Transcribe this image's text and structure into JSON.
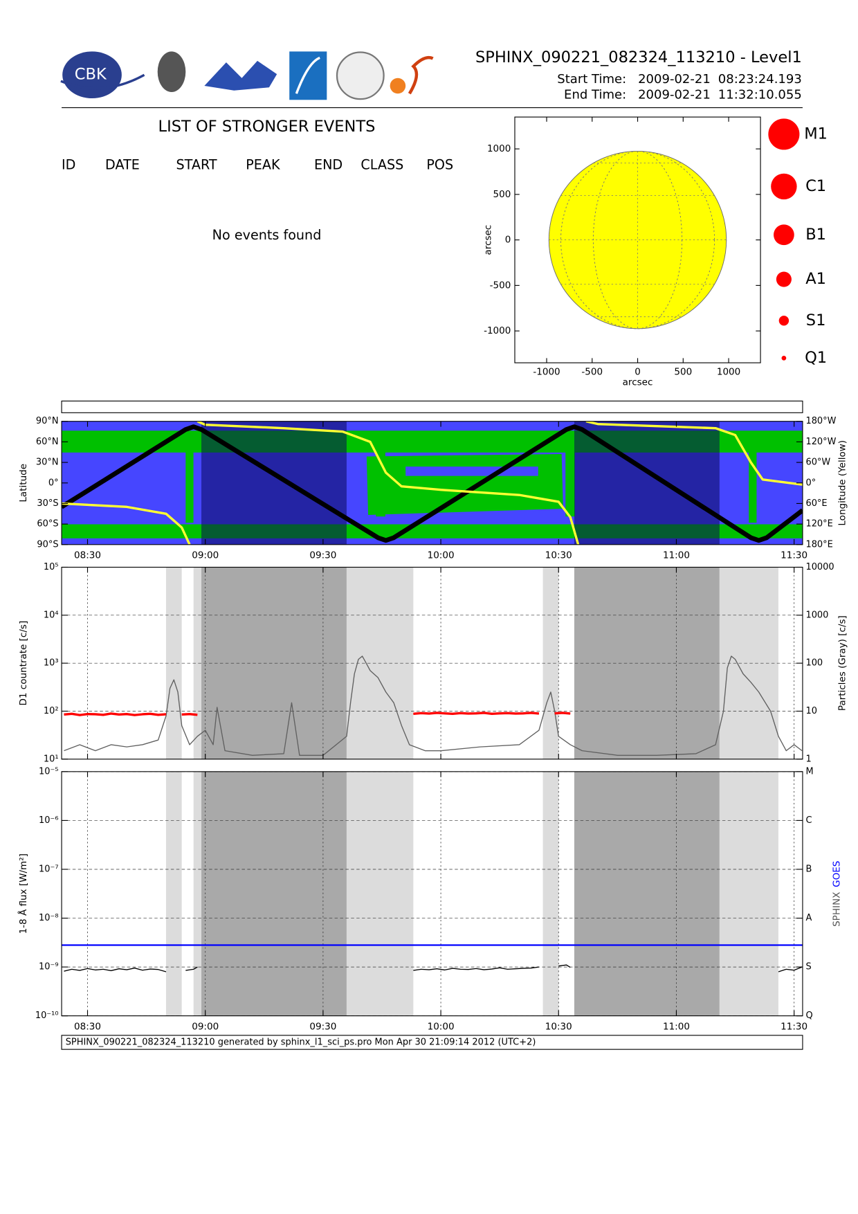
{
  "header": {
    "title": "SPHINX_090221_082324_113210 - Level1",
    "start_label": "Start Time:",
    "start_date": "2009-02-21",
    "start_time": "08:23:24.193",
    "end_label": "End Time:",
    "end_date": "2009-02-21",
    "end_time": "11:32:10.055"
  },
  "logos": {
    "cbk": "CBK"
  },
  "events": {
    "title": "LIST OF STRONGER EVENTS",
    "columns": [
      "ID",
      "DATE",
      "START",
      "PEAK",
      "END",
      "CLASS",
      "POS"
    ],
    "message": "No events found"
  },
  "shade_colors": {
    "light": "#dcdcdc",
    "dark": "#a9a9a9"
  },
  "shaded_intervals": [
    {
      "start": "08:50",
      "end": "08:54",
      "kind": "light"
    },
    {
      "start": "08:57",
      "end": "08:59",
      "kind": "light"
    },
    {
      "start": "08:59",
      "end": "09:36",
      "kind": "dark"
    },
    {
      "start": "09:36",
      "end": "09:53",
      "kind": "light"
    },
    {
      "start": "10:26",
      "end": "10:30",
      "kind": "light"
    },
    {
      "start": "10:34",
      "end": "11:11",
      "kind": "dark"
    },
    {
      "start": "11:11",
      "end": "11:26",
      "kind": "light"
    }
  ],
  "chart_data": [
    {
      "type": "disk",
      "xlabel": "arcsec",
      "ylabel": "arcsec",
      "xlim": [
        -1350,
        1350
      ],
      "ylim": [
        -1350,
        1350
      ],
      "xticks": [
        -1000,
        -500,
        0,
        500,
        1000
      ],
      "yticks": [
        -1000,
        -500,
        0,
        500,
        1000
      ],
      "disk_radius": 975,
      "disk_color": "#ffff00",
      "size_legend": {
        "labels": [
          "M1",
          "C1",
          "B1",
          "A1",
          "S1",
          "Q1"
        ],
        "color": "#ff0000"
      }
    },
    {
      "type": "line",
      "ylabel": "Latitude",
      "y2label": "Longitude (Yellow)",
      "xlim": [
        "08:23:24",
        "11:32:10"
      ],
      "xticks": [
        "08:30",
        "09:00",
        "09:30",
        "10:00",
        "10:30",
        "11:00",
        "11:30"
      ],
      "xtick_labels": true,
      "ylim": [
        -90,
        90
      ],
      "yticks": [
        {
          "value": 90,
          "label": "90°N"
        },
        {
          "value": 60,
          "label": "60°N"
        },
        {
          "value": 30,
          "label": "30°N"
        },
        {
          "value": 0,
          "label": "0°"
        },
        {
          "value": -30,
          "label": "30°S"
        },
        {
          "value": -60,
          "label": "60°S"
        },
        {
          "value": -90,
          "label": "90°S"
        }
      ],
      "y2lim": [
        -180,
        180
      ],
      "y2ticks": [
        {
          "value": 180,
          "label": "180°W"
        },
        {
          "value": 120,
          "label": "120°W"
        },
        {
          "value": 60,
          "label": "60°W"
        },
        {
          "value": 0,
          "label": "0°"
        },
        {
          "value": -60,
          "label": "60°E"
        },
        {
          "value": -120,
          "label": "120°E"
        },
        {
          "value": -180,
          "label": "180°E"
        }
      ],
      "map_background": true,
      "series": [
        {
          "color": "#000000",
          "width": 6,
          "x": [
            "08:23:24",
            "08:55",
            "08:57",
            "08:59",
            "09:44",
            "09:46",
            "09:48",
            "10:32",
            "10:34",
            "10:36",
            "11:19",
            "11:21",
            "11:23",
            "11:32:10"
          ],
          "values": [
            -35,
            78,
            82,
            78,
            -80,
            -84,
            -80,
            78,
            82,
            78,
            -80,
            -84,
            -80,
            -40
          ]
        },
        {
          "color": "#ffff33",
          "width": 3,
          "axis": "y2",
          "x": [
            "08:23:24",
            "08:40",
            "08:50",
            "08:54",
            "08:56",
            "08:57",
            "08:58",
            "09:00",
            "09:20",
            "09:35",
            "09:42",
            "09:46",
            "09:50",
            "10:00",
            "10:20",
            "10:30",
            "10:33",
            "10:35",
            "10:36",
            "10:37",
            "10:40",
            "11:10",
            "11:15",
            "11:19",
            "11:22",
            "11:32:10"
          ],
          "values": [
            -60,
            -70,
            -90,
            -130,
            -180,
            null,
            180,
            170,
            160,
            150,
            120,
            30,
            -10,
            -20,
            -35,
            -55,
            -100,
            -180,
            null,
            180,
            172,
            160,
            140,
            60,
            10,
            -5
          ]
        }
      ]
    },
    {
      "type": "line",
      "ylabel": "D1 countrate [c/s]",
      "y2label": "Particles (Gray) [c/s]",
      "xlim": [
        "08:23:24",
        "11:32:10"
      ],
      "xticks": [
        "08:30",
        "09:00",
        "09:30",
        "10:00",
        "10:30",
        "11:00",
        "11:30"
      ],
      "xtick_labels": false,
      "scale": "log",
      "grid": true,
      "ylim": [
        10,
        100000
      ],
      "yticks": [
        {
          "value": 10,
          "label": "10¹"
        },
        {
          "value": 100,
          "label": "10²"
        },
        {
          "value": 1000,
          "label": "10³"
        },
        {
          "value": 10000,
          "label": "10⁴"
        },
        {
          "value": 100000,
          "label": "10⁵"
        }
      ],
      "y2lim": [
        1,
        10000
      ],
      "y2ticks": [
        1,
        10,
        100,
        1000,
        10000
      ],
      "series": [
        {
          "color": "#606060",
          "width": 1.2,
          "axis": "y2",
          "x": [
            "08:24",
            "08:28",
            "08:32",
            "08:36",
            "08:40",
            "08:44",
            "08:48",
            "08:50",
            "08:51",
            "08:52",
            "08:53",
            "08:54",
            "08:56",
            "08:58",
            "09:00",
            "09:02",
            "09:03",
            "09:05",
            "09:12",
            "09:20",
            "09:22",
            "09:24",
            "09:30",
            "09:36",
            "09:37",
            "09:38",
            "09:39",
            "09:40",
            "09:41",
            "09:42",
            "09:44",
            "09:46",
            "09:48",
            "09:50",
            "09:52",
            "09:56",
            "10:00",
            "10:10",
            "10:20",
            "10:25",
            "10:27",
            "10:28",
            "10:29",
            "10:30",
            "10:33",
            "10:36",
            "10:45",
            "10:55",
            "11:05",
            "11:10",
            "11:12",
            "11:13",
            "11:14",
            "11:15",
            "11:17",
            "11:19",
            "11:21",
            "11:24",
            "11:26",
            "11:28",
            "11:30",
            "11:32"
          ],
          "values": [
            1.5,
            2,
            1.5,
            2,
            1.8,
            2,
            2.5,
            8,
            30,
            45,
            25,
            5,
            2,
            3,
            4,
            2,
            12,
            1.5,
            1.2,
            1.3,
            15,
            1.2,
            1.2,
            3,
            15,
            60,
            120,
            140,
            100,
            70,
            50,
            25,
            15,
            5,
            2,
            1.5,
            1.5,
            1.8,
            2,
            4,
            15,
            25,
            10,
            3,
            2,
            1.5,
            1.2,
            1.2,
            1.3,
            2,
            10,
            80,
            140,
            120,
            60,
            40,
            25,
            10,
            3,
            1.5,
            2,
            1.5
          ]
        },
        {
          "color": "#ff0000",
          "width": 3,
          "x": [
            "08:24",
            "08:26",
            "08:28",
            "08:30",
            "08:32",
            "08:34",
            "08:36",
            "08:38",
            "08:40",
            "08:42",
            "08:44",
            "08:46",
            "08:48",
            "08:50",
            "08:52",
            "08:54",
            "08:56",
            "08:58",
            "09:20",
            "09:53",
            "09:55",
            "09:57",
            "09:59",
            "10:01",
            "10:03",
            "10:05",
            "10:07",
            "10:09",
            "10:11",
            "10:13",
            "10:15",
            "10:17",
            "10:19",
            "10:21",
            "10:23",
            "10:25",
            "10:27",
            "10:29",
            "10:31",
            "10:33"
          ],
          "values": [
            85,
            88,
            83,
            87,
            86,
            84,
            89,
            85,
            87,
            83,
            86,
            88,
            84,
            86,
            null,
            85,
            87,
            84,
            null,
            88,
            91,
            89,
            92,
            90,
            88,
            91,
            89,
            90,
            92,
            88,
            90,
            91,
            89,
            90,
            92,
            89,
            null,
            90,
            92,
            89
          ]
        }
      ]
    },
    {
      "type": "line",
      "ylabel": "1-8 Å flux [W/m²]",
      "y2label_parts": [
        {
          "text": "SPHINX",
          "color": "#555555"
        },
        {
          "text": "GOES",
          "color": "#0000ff"
        }
      ],
      "xlim": [
        "08:23:24",
        "11:32:10"
      ],
      "xticks": [
        "08:30",
        "09:00",
        "09:30",
        "10:00",
        "10:30",
        "11:00",
        "11:30"
      ],
      "xtick_labels": true,
      "scale": "log",
      "grid": true,
      "ylim": [
        1e-10,
        1e-05
      ],
      "yticks": [
        {
          "value": 1e-10,
          "label": "10⁻¹⁰"
        },
        {
          "value": 1e-09,
          "label": "10⁻⁹"
        },
        {
          "value": 1e-08,
          "label": "10⁻⁸"
        },
        {
          "value": 1e-07,
          "label": "10⁻⁷"
        },
        {
          "value": 1e-06,
          "label": "10⁻⁶"
        },
        {
          "value": 1e-05,
          "label": "10⁻⁵"
        }
      ],
      "y2lim": [
        1e-10,
        1e-05
      ],
      "y2ticks": [
        {
          "value": 1e-10,
          "label": "Q"
        },
        {
          "value": 1e-09,
          "label": "S"
        },
        {
          "value": 1e-08,
          "label": "A"
        },
        {
          "value": 1e-07,
          "label": "B"
        },
        {
          "value": 1e-06,
          "label": "C"
        },
        {
          "value": 1e-05,
          "label": "M"
        }
      ],
      "series": [
        {
          "color": "#0000ff",
          "width": 2,
          "x": [
            "08:23:24",
            "11:32:10"
          ],
          "values": [
            2.8e-09,
            2.8e-09
          ]
        },
        {
          "color": "#000000",
          "width": 1.2,
          "x": [
            "08:24",
            "08:26",
            "08:28",
            "08:30",
            "08:32",
            "08:34",
            "08:36",
            "08:38",
            "08:40",
            "08:42",
            "08:44",
            "08:46",
            "08:48",
            "08:50",
            "08:52",
            "08:55",
            "08:57",
            "08:58",
            "09:20",
            "09:53",
            "09:55",
            "09:57",
            "09:59",
            "10:01",
            "10:03",
            "10:05",
            "10:07",
            "10:09",
            "10:11",
            "10:13",
            "10:15",
            "10:17",
            "10:19",
            "10:21",
            "10:23",
            "10:25",
            "10:28",
            "10:30",
            "10:32",
            "10:33",
            "11:00",
            "11:26",
            "11:28",
            "11:30",
            "11:32"
          ],
          "values": [
            8.2e-10,
            9e-10,
            8.5e-10,
            9.3e-10,
            8.7e-10,
            9e-10,
            8.4e-10,
            9.2e-10,
            8.8e-10,
            9.5e-10,
            8.6e-10,
            9.1e-10,
            8.9e-10,
            8e-10,
            null,
            8.5e-10,
            9e-10,
            1e-09,
            null,
            8.5e-10,
            9e-10,
            8.8e-10,
            9.2e-10,
            8.7e-10,
            9.4e-10,
            9e-10,
            8.9e-10,
            9.3e-10,
            8.8e-10,
            9.1e-10,
            9.6e-10,
            9e-10,
            9.2e-10,
            9.4e-10,
            9.5e-10,
            1e-09,
            null,
            1.05e-09,
            1.1e-09,
            9.8e-10,
            null,
            8e-10,
            9e-10,
            8.6e-10,
            1e-09
          ]
        }
      ]
    }
  ],
  "footer": "SPHINX_090221_082324_113210 generated by sphinx_l1_sci_ps.pro Mon Apr 30 21:09:14 2012 (UTC+2)"
}
